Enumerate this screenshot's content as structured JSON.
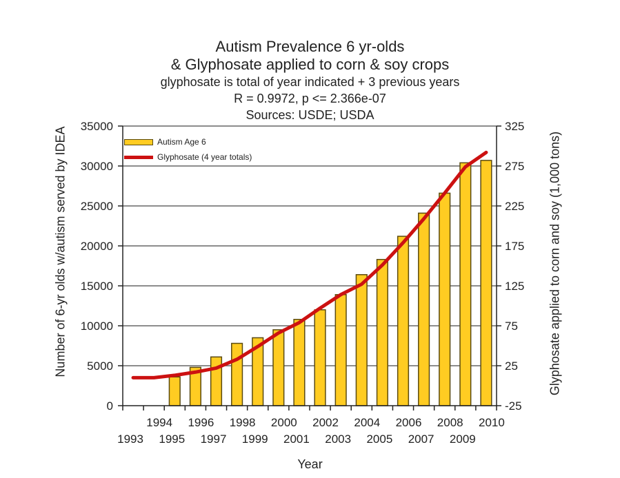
{
  "title": {
    "line1": "Autism Prevalence 6 yr-olds",
    "line2": "& Glyphosate applied to corn & soy crops",
    "line3": "glyphosate is total of year indicated + 3 previous years",
    "line4": "R = 0.9972, p <= 2.366e-07",
    "line5": "Sources: USDE; USDA"
  },
  "axes": {
    "xlabel": "Year",
    "ylabel_left": "Number of 6-yr olds w/autism served by IDEA",
    "ylabel_right": "Glyphosate applied to corn and soy (1,000 tons)"
  },
  "legend": {
    "bar_label": "Autism Age 6",
    "line_label": "Glyphosate (4 year totals)"
  },
  "colors": {
    "bar_fill": "#ffcc22",
    "bar_stroke": "#5a4a10",
    "line": "#cc1111",
    "grid": "#666666"
  },
  "chart_data": {
    "type": "bar",
    "title": "Autism Prevalence 6 yr-olds & Glyphosate applied to corn & soy crops",
    "subtitle": "glyphosate is total of year indicated + 3 previous years; R = 0.9972, p <= 2.366e-07; Sources: USDE; USDA",
    "xlabel": "Year",
    "ylabel": "Number of 6-yr olds w/autism served by IDEA",
    "ylabel_right": "Glyphosate applied to corn and soy (1,000 tons)",
    "categories": [
      "1993",
      "1994",
      "1995",
      "1996",
      "1997",
      "1998",
      "1999",
      "2000",
      "2001",
      "2002",
      "2003",
      "2004",
      "2005",
      "2006",
      "2007",
      "2008",
      "2009",
      "2010"
    ],
    "series": [
      {
        "name": "Autism Age 6",
        "type": "bar",
        "axis": "left",
        "values": [
          null,
          null,
          3600,
          4800,
          6100,
          7800,
          8500,
          9500,
          10800,
          12000,
          13900,
          16400,
          18300,
          21200,
          24100,
          26600,
          30400,
          30700
        ]
      },
      {
        "name": "Glyphosate (4 year totals)",
        "type": "line",
        "axis": "right",
        "values": [
          10,
          10,
          13,
          17,
          22,
          33,
          49,
          66,
          79,
          97,
          114,
          127,
          151,
          179,
          209,
          241,
          274,
          292
        ]
      }
    ],
    "ylim": [
      0,
      35000
    ],
    "ylim_right": [
      -25,
      325
    ],
    "yticks": [
      0,
      5000,
      10000,
      15000,
      20000,
      25000,
      30000,
      35000
    ],
    "yticks_right": [
      -25,
      25,
      75,
      125,
      175,
      225,
      275,
      325
    ],
    "grid": true,
    "legend_position": "upper left"
  }
}
